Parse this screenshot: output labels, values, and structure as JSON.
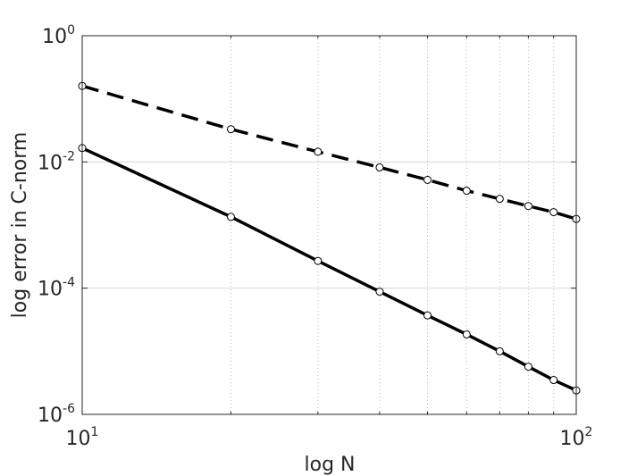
{
  "chart_data": {
    "type": "line",
    "title": "",
    "xlabel": "log N",
    "ylabel": "log error in C-norm",
    "xscale": "log",
    "yscale": "log",
    "xlim": [
      10,
      100
    ],
    "ylim": [
      1e-06,
      1
    ],
    "x_ticks": [
      {
        "base": "10",
        "exp": "1",
        "value": 10
      },
      {
        "base": "10",
        "exp": "2",
        "value": 100
      }
    ],
    "y_ticks": [
      {
        "base": "10",
        "exp": "0",
        "value": 1
      },
      {
        "base": "10",
        "exp": "-2",
        "value": 0.01
      },
      {
        "base": "10",
        "exp": "-4",
        "value": 0.0001
      },
      {
        "base": "10",
        "exp": "-6",
        "value": 1e-06
      }
    ],
    "grid": {
      "x_minor_dotted": true,
      "y_major_solid": true
    },
    "x": [
      10,
      20,
      30,
      40,
      50,
      60,
      70,
      80,
      90,
      100
    ],
    "series": [
      {
        "style": "dashed",
        "marker": "circle",
        "color": "#000000",
        "values": [
          0.16,
          0.033,
          0.0145,
          0.0082,
          0.0052,
          0.0035,
          0.0026,
          0.002,
          0.0016,
          0.00125
        ]
      },
      {
        "style": "solid",
        "marker": "circle",
        "color": "#000000",
        "values": [
          0.0166,
          0.00135,
          0.00027,
          8.8e-05,
          3.7e-05,
          1.85e-05,
          1e-05,
          5.7e-06,
          3.5e-06,
          2.4e-06
        ]
      }
    ]
  }
}
